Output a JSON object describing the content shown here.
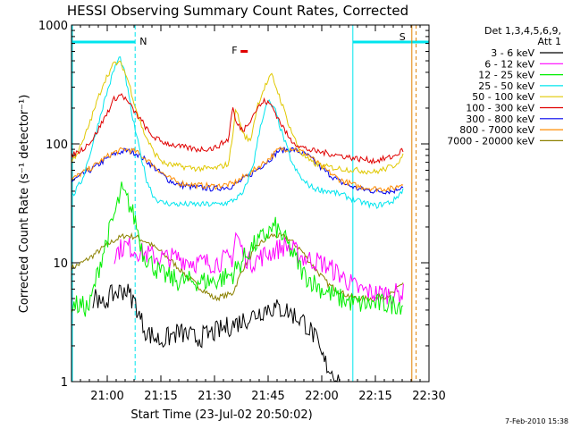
{
  "chart_data": {
    "type": "line",
    "title": "HESSI Observing Summary Count Rates, Corrected",
    "xlabel": "Start Time (23-Jul-02 20:50:02)",
    "ylabel": "Corrected Count Rate (s⁻¹ detector⁻¹)",
    "yscale": "log",
    "ylim": [
      1,
      1000
    ],
    "xlim_min_after_start": [
      0,
      100
    ],
    "x_unit": "minutes after 20:50:02",
    "y_tick_labels": [
      "1",
      "10",
      "100",
      "1000"
    ],
    "x_tick_labels": [
      "21:00",
      "21:15",
      "21:30",
      "21:45",
      "22:00",
      "22:15",
      "22:30"
    ],
    "x_tick_times_min": [
      10,
      25,
      40,
      55,
      70,
      85,
      100
    ],
    "legend": {
      "header": [
        "Det 1,3,4,5,6,9,",
        "Att 1"
      ],
      "placement": "right"
    },
    "markers": {
      "N": {
        "label": "N",
        "color": "#00e5ee",
        "lines_min": [
          0,
          17.8,
          78.7
        ]
      },
      "F": {
        "label": "F",
        "color": "#e00000",
        "x_min": 44.8
      },
      "S": {
        "label": "S",
        "color": "#e08000",
        "lines_min": [
          95.2,
          96.4
        ]
      }
    },
    "series": [
      {
        "name": "3 - 6 keV",
        "color": "#000000",
        "x": [
          6,
          7,
          8,
          10,
          12,
          15,
          18,
          19,
          21,
          25,
          30,
          35,
          40,
          45,
          50,
          55,
          60,
          65,
          68,
          70,
          72,
          74,
          75
        ],
        "values": [
          4.5,
          6,
          4,
          5,
          5.5,
          6,
          4.5,
          3.5,
          2.6,
          2.2,
          2.6,
          2.3,
          2.6,
          3,
          3.5,
          4.2,
          4,
          3.2,
          2.4,
          1.6,
          1.3,
          1.1,
          1
        ]
      },
      {
        "name": "6 - 12 keV",
        "color": "#ff00ff",
        "x": [
          12,
          15,
          20,
          25,
          30,
          35,
          40,
          45,
          46,
          48,
          50,
          55,
          60,
          65,
          70,
          75,
          80,
          85,
          90,
          93
        ],
        "values": [
          12,
          14,
          12,
          11,
          11,
          10,
          10,
          11,
          18,
          12,
          10,
          12,
          14,
          11,
          10,
          8,
          6,
          5.5,
          5.5,
          5.5
        ]
      },
      {
        "name": "12 - 25 keV",
        "color": "#00ee00",
        "x": [
          0,
          3,
          5,
          8,
          10,
          12,
          14,
          16,
          18,
          20,
          25,
          30,
          35,
          40,
          45,
          50,
          55,
          57,
          60,
          65,
          70,
          75,
          80,
          85,
          90,
          93
        ],
        "values": [
          4.5,
          4.3,
          4.2,
          10,
          16,
          25,
          40,
          32,
          22,
          12,
          8,
          7,
          7,
          7,
          8,
          13,
          18,
          20,
          15,
          8,
          6,
          5,
          4.5,
          4.5,
          4.5,
          4.5
        ]
      },
      {
        "name": "25 - 50 keV",
        "color": "#00e5ee",
        "x": [
          0,
          3,
          6,
          9,
          12,
          13.5,
          15,
          17,
          19,
          21,
          23,
          25,
          30,
          35,
          40,
          44,
          48,
          51,
          53,
          55,
          57,
          59,
          62,
          65,
          68,
          72,
          76,
          80,
          85,
          90,
          93
        ],
        "values": [
          35,
          50,
          100,
          220,
          430,
          540,
          380,
          170,
          90,
          50,
          36,
          32,
          31,
          31,
          31,
          32,
          38,
          70,
          150,
          230,
          190,
          120,
          65,
          48,
          42,
          40,
          37,
          33,
          30,
          33,
          42
        ]
      },
      {
        "name": "50 - 100 keV",
        "color": "#e0c800",
        "x": [
          0,
          3,
          6,
          9,
          12,
          14,
          16,
          18,
          20,
          23,
          26,
          30,
          35,
          40,
          44,
          46,
          48,
          50,
          52,
          54,
          56,
          58,
          61,
          64,
          67,
          70,
          75,
          80,
          85,
          90,
          93
        ],
        "values": [
          70,
          100,
          180,
          330,
          480,
          470,
          330,
          200,
          130,
          85,
          68,
          65,
          62,
          62,
          68,
          200,
          120,
          105,
          210,
          300,
          380,
          260,
          140,
          85,
          70,
          65,
          62,
          60,
          58,
          65,
          80
        ]
      },
      {
        "name": "100 - 300 keV",
        "color": "#e00000",
        "x": [
          0,
          3,
          6,
          9,
          12,
          14,
          16,
          18,
          20,
          22,
          25,
          30,
          35,
          40,
          44,
          45,
          46,
          48,
          50,
          52,
          54,
          56,
          58,
          61,
          64,
          67,
          70,
          75,
          80,
          85,
          90,
          93
        ],
        "values": [
          80,
          90,
          110,
          160,
          240,
          260,
          220,
          180,
          150,
          120,
          105,
          95,
          90,
          92,
          110,
          210,
          150,
          130,
          160,
          200,
          230,
          210,
          160,
          110,
          95,
          88,
          85,
          80,
          75,
          72,
          78,
          90
        ]
      },
      {
        "name": "300 - 800 keV",
        "color": "#0000ee",
        "x": [
          0,
          3,
          6,
          9,
          12,
          15,
          18,
          21,
          24,
          27,
          30,
          35,
          40,
          45,
          50,
          55,
          58,
          62,
          66,
          70,
          75,
          80,
          85,
          90,
          93
        ],
        "values": [
          48,
          55,
          62,
          72,
          82,
          88,
          84,
          72,
          60,
          50,
          45,
          43,
          42,
          44,
          55,
          72,
          88,
          90,
          80,
          62,
          48,
          42,
          40,
          40,
          45
        ]
      },
      {
        "name": "800 - 7000 keV",
        "color": "#ff8c00",
        "x": [
          0,
          3,
          6,
          9,
          12,
          15,
          18,
          21,
          24,
          27,
          30,
          35,
          40,
          45,
          50,
          55,
          58,
          62,
          66,
          70,
          75,
          80,
          85,
          90,
          93
        ],
        "values": [
          50,
          57,
          64,
          75,
          85,
          90,
          86,
          74,
          62,
          52,
          47,
          45,
          44,
          46,
          57,
          74,
          90,
          92,
          82,
          64,
          50,
          44,
          42,
          42,
          47
        ]
      },
      {
        "name": "7000 - 20000 keV",
        "color": "#8b8000",
        "x": [
          0,
          3,
          6,
          9,
          12,
          15,
          18,
          21,
          24,
          27,
          30,
          35,
          40,
          45,
          48,
          52,
          56,
          60,
          64,
          68,
          72,
          76,
          80,
          85,
          90,
          93
        ],
        "values": [
          9,
          10,
          11.5,
          13.5,
          15.5,
          17,
          16.5,
          15,
          13,
          11,
          9,
          6.5,
          5,
          5.5,
          9,
          14,
          17,
          16.5,
          13,
          9,
          6.5,
          5.5,
          5,
          5,
          5.5,
          7
        ]
      }
    ],
    "footer_date": "7-Feb-2010 15:38"
  }
}
